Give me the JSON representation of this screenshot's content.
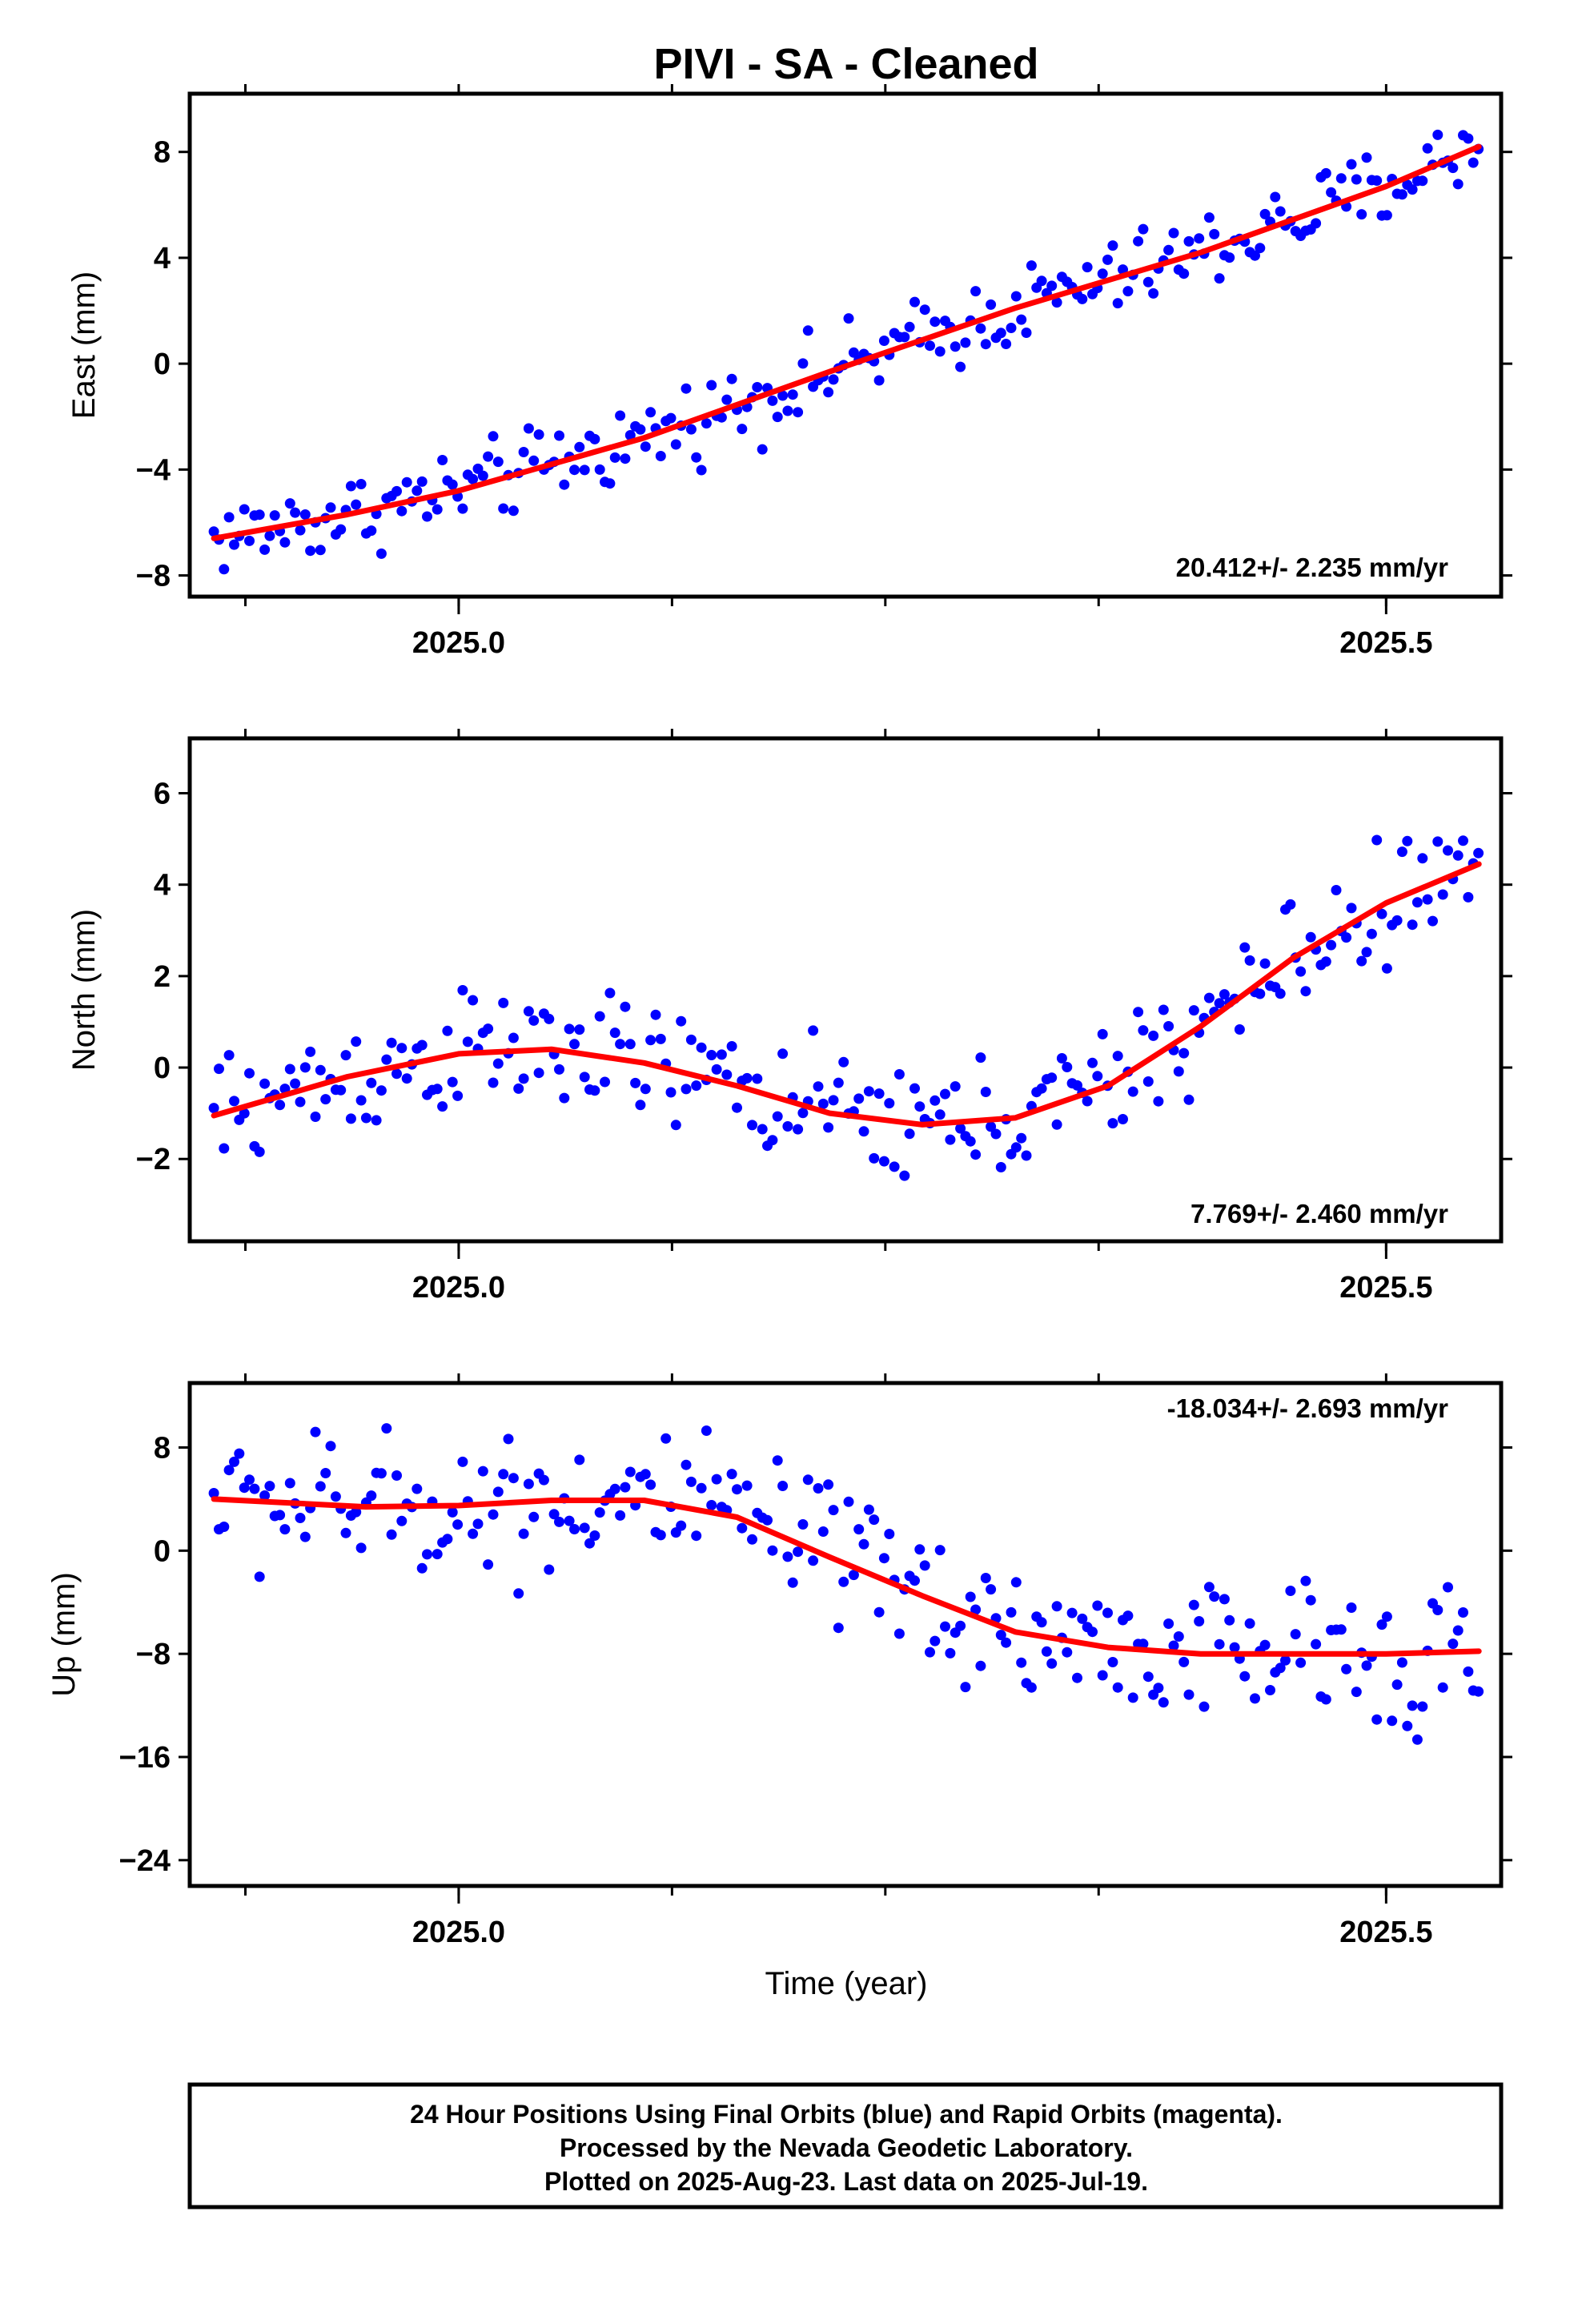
{
  "title": "PIVI  - SA - Cleaned",
  "xlabel": "Time (year)",
  "colors": {
    "final_orbits": "#0000ff",
    "rapid_orbits": "#ff00ff",
    "model": "#ff0000",
    "frame": "#000000"
  },
  "footer": {
    "line1": "24 Hour Positions Using Final Orbits (blue) and Rapid Orbits (magenta).",
    "line2": "Processed by the Nevada Geodetic Laboratory.",
    "line3": "Plotted on 2025-Aug-23. Last data on 2025-Jul-19."
  },
  "chart_data": [
    {
      "type": "scatter",
      "ylabel": "East (mm)",
      "rate_label": "20.412+/- 2.235 mm/yr",
      "xlim": [
        2024.855,
        2025.562
      ],
      "ylim": [
        -8.8,
        10.2
      ],
      "xticks": [
        2025.0,
        2025.5
      ],
      "xtick_labels": [
        "2025.0",
        "2025.5"
      ],
      "yticks": [
        -8,
        -4,
        0,
        4,
        8
      ],
      "ytick_labels": [
        "−8",
        "−4",
        "0",
        "4",
        "8"
      ],
      "trend": {
        "x": [
          2024.868,
          2024.94,
          2025.0,
          2025.1,
          2025.2,
          2025.3,
          2025.4,
          2025.5,
          2025.55
        ],
        "y": [
          -6.6,
          -5.7,
          -4.8,
          -2.8,
          -0.3,
          2.1,
          4.2,
          6.7,
          8.2
        ]
      },
      "series_shape": {
        "base": [
          -6.6,
          -5.7,
          -4.8,
          -2.8,
          -0.3,
          2.1,
          4.2,
          6.7,
          8.2
        ],
        "noise": 1.5
      }
    },
    {
      "type": "scatter",
      "ylabel": "North (mm)",
      "rate_label": "7.769+/- 2.460 mm/yr",
      "xlim": [
        2024.855,
        2025.562
      ],
      "ylim": [
        -3.8,
        7.2
      ],
      "xticks": [
        2025.0,
        2025.5
      ],
      "xtick_labels": [
        "2025.0",
        "2025.5"
      ],
      "yticks": [
        -2,
        0,
        2,
        4,
        6
      ],
      "ytick_labels": [
        "−2",
        "0",
        "2",
        "4",
        "6"
      ],
      "trend": {
        "x": [
          2024.868,
          2024.94,
          2025.0,
          2025.05,
          2025.1,
          2025.15,
          2025.2,
          2025.25,
          2025.3,
          2025.35,
          2025.4,
          2025.45,
          2025.5,
          2025.55
        ],
        "y": [
          -1.05,
          -0.2,
          0.3,
          0.4,
          0.1,
          -0.4,
          -1.0,
          -1.25,
          -1.1,
          -0.4,
          0.9,
          2.4,
          3.6,
          4.45
        ]
      },
      "series_shape": {
        "base": [
          -1.05,
          -0.2,
          0.3,
          0.4,
          0.1,
          -0.4,
          -1.0,
          -1.25,
          -1.1,
          -0.4,
          0.9,
          2.4,
          3.6,
          4.45
        ],
        "noise": 1.3
      }
    },
    {
      "type": "scatter",
      "ylabel": "Up (mm)",
      "rate_label": "-18.034+/- 2.693 mm/yr",
      "xlim": [
        2024.855,
        2025.562
      ],
      "ylim": [
        -26,
        13
      ],
      "xticks": [
        2025.0,
        2025.5
      ],
      "xtick_labels": [
        "2025.0",
        "2025.5"
      ],
      "yticks": [
        -24,
        -16,
        -8,
        0,
        8
      ],
      "ytick_labels": [
        "−24",
        "−16",
        "−8",
        "0",
        "8"
      ],
      "trend": {
        "x": [
          2024.868,
          2024.95,
          2025.0,
          2025.05,
          2025.1,
          2025.15,
          2025.2,
          2025.25,
          2025.3,
          2025.35,
          2025.4,
          2025.45,
          2025.5,
          2025.55
        ],
        "y": [
          4.0,
          3.4,
          3.5,
          3.9,
          3.9,
          2.6,
          -0.5,
          -3.5,
          -6.3,
          -7.5,
          -8.0,
          -8.0,
          -8.0,
          -7.8
        ]
      },
      "series_shape": {
        "base": [
          4.0,
          3.4,
          3.5,
          3.9,
          3.9,
          2.6,
          -0.5,
          -3.5,
          -6.3,
          -7.5,
          -8.0,
          -8.0,
          -8.0,
          -7.8
        ],
        "noise": 5.5
      }
    }
  ]
}
